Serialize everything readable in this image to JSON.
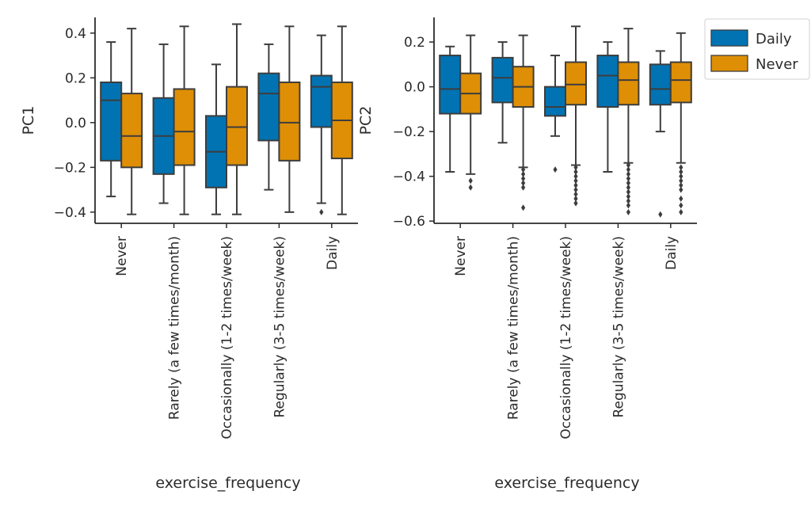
{
  "legend": {
    "entries": [
      {
        "label": "Daily",
        "color": "#0173b2"
      },
      {
        "label": "Never",
        "color": "#de8f05"
      }
    ]
  },
  "chart_data": [
    {
      "type": "boxplot",
      "title": "",
      "xlabel": "exercise_frequency",
      "ylabel": "PC1",
      "ylim": [
        -0.45,
        0.47
      ],
      "yticks": [
        -0.4,
        -0.2,
        0.0,
        0.2,
        0.4
      ],
      "ytick_labels": [
        "−0.4",
        "−0.2",
        "0.0",
        "0.2",
        "0.4"
      ],
      "categories": [
        "Never",
        "Rarely (a few times/month)",
        "Occasionally (1-2 times/week)",
        "Regularly (3-5 times/week)",
        "Daily"
      ],
      "series": [
        {
          "name": "Daily",
          "boxes": [
            {
              "whislo": -0.33,
              "q1": -0.17,
              "med": 0.1,
              "q3": 0.18,
              "whishi": 0.36,
              "fliers": []
            },
            {
              "whislo": -0.36,
              "q1": -0.23,
              "med": -0.06,
              "q3": 0.11,
              "whishi": 0.35,
              "fliers": []
            },
            {
              "whislo": -0.41,
              "q1": -0.29,
              "med": -0.13,
              "q3": 0.03,
              "whishi": 0.26,
              "fliers": []
            },
            {
              "whislo": -0.3,
              "q1": -0.08,
              "med": 0.13,
              "q3": 0.22,
              "whishi": 0.35,
              "fliers": []
            },
            {
              "whislo": -0.36,
              "q1": -0.02,
              "med": 0.16,
              "q3": 0.21,
              "whishi": 0.39,
              "fliers": [
                -0.4
              ]
            }
          ]
        },
        {
          "name": "Never",
          "boxes": [
            {
              "whislo": -0.41,
              "q1": -0.2,
              "med": -0.06,
              "q3": 0.13,
              "whishi": 0.42,
              "fliers": []
            },
            {
              "whislo": -0.41,
              "q1": -0.19,
              "med": -0.04,
              "q3": 0.15,
              "whishi": 0.43,
              "fliers": []
            },
            {
              "whislo": -0.41,
              "q1": -0.19,
              "med": -0.02,
              "q3": 0.16,
              "whishi": 0.44,
              "fliers": []
            },
            {
              "whislo": -0.4,
              "q1": -0.17,
              "med": 0.0,
              "q3": 0.18,
              "whishi": 0.43,
              "fliers": []
            },
            {
              "whislo": -0.41,
              "q1": -0.16,
              "med": 0.01,
              "q3": 0.18,
              "whishi": 0.43,
              "fliers": []
            }
          ]
        }
      ]
    },
    {
      "type": "boxplot",
      "title": "",
      "xlabel": "exercise_frequency",
      "ylabel": "PC2",
      "ylim": [
        -0.61,
        0.31
      ],
      "yticks": [
        -0.6,
        -0.4,
        -0.2,
        0.0,
        0.2
      ],
      "ytick_labels": [
        "−0.6",
        "−0.4",
        "−0.2",
        "0.0",
        "0.2"
      ],
      "categories": [
        "Never",
        "Rarely (a few times/month)",
        "Occasionally (1-2 times/week)",
        "Regularly (3-5 times/week)",
        "Daily"
      ],
      "series": [
        {
          "name": "Daily",
          "boxes": [
            {
              "whislo": -0.38,
              "q1": -0.12,
              "med": -0.01,
              "q3": 0.14,
              "whishi": 0.18,
              "fliers": []
            },
            {
              "whislo": -0.25,
              "q1": -0.07,
              "med": 0.04,
              "q3": 0.13,
              "whishi": 0.2,
              "fliers": []
            },
            {
              "whislo": -0.22,
              "q1": -0.13,
              "med": -0.09,
              "q3": 0.0,
              "whishi": 0.14,
              "fliers": [
                -0.37
              ]
            },
            {
              "whislo": -0.38,
              "q1": -0.09,
              "med": 0.05,
              "q3": 0.14,
              "whishi": 0.2,
              "fliers": []
            },
            {
              "whislo": -0.2,
              "q1": -0.08,
              "med": -0.01,
              "q3": 0.1,
              "whishi": 0.16,
              "fliers": [
                -0.57
              ]
            }
          ]
        },
        {
          "name": "Never",
          "boxes": [
            {
              "whislo": -0.39,
              "q1": -0.12,
              "med": -0.03,
              "q3": 0.06,
              "whishi": 0.23,
              "fliers": [
                -0.42,
                -0.45
              ]
            },
            {
              "whislo": -0.36,
              "q1": -0.09,
              "med": 0.0,
              "q3": 0.09,
              "whishi": 0.23,
              "fliers": [
                -0.37,
                -0.39,
                -0.41,
                -0.43,
                -0.45,
                -0.54
              ]
            },
            {
              "whislo": -0.35,
              "q1": -0.08,
              "med": 0.01,
              "q3": 0.11,
              "whishi": 0.27,
              "fliers": [
                -0.36,
                -0.38,
                -0.4,
                -0.42,
                -0.44,
                -0.46,
                -0.48,
                -0.5,
                -0.52
              ]
            },
            {
              "whislo": -0.34,
              "q1": -0.08,
              "med": 0.03,
              "q3": 0.11,
              "whishi": 0.26,
              "fliers": [
                -0.35,
                -0.37,
                -0.39,
                -0.41,
                -0.43,
                -0.45,
                -0.47,
                -0.49,
                -0.51,
                -0.53,
                -0.56
              ]
            },
            {
              "whislo": -0.34,
              "q1": -0.07,
              "med": 0.03,
              "q3": 0.11,
              "whishi": 0.24,
              "fliers": [
                -0.36,
                -0.38,
                -0.4,
                -0.42,
                -0.44,
                -0.46,
                -0.5,
                -0.53,
                -0.56
              ]
            }
          ]
        }
      ]
    }
  ]
}
